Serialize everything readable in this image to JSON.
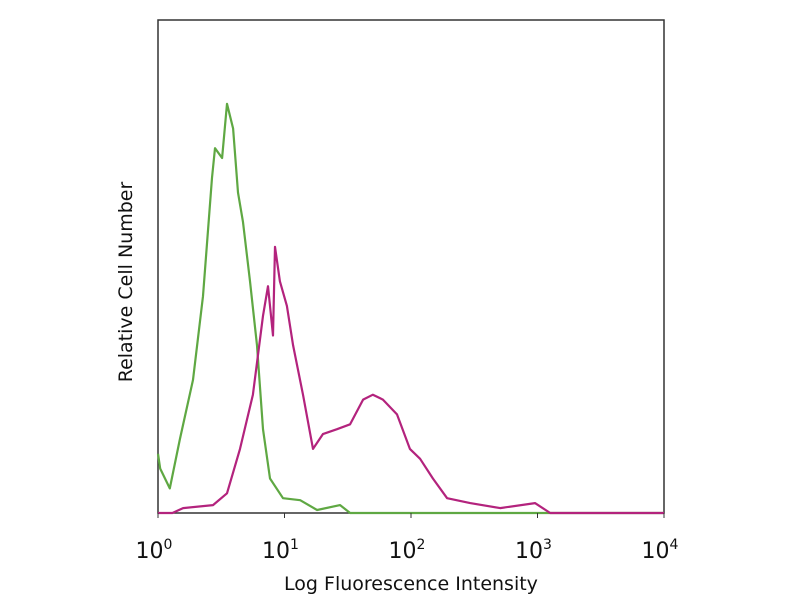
{
  "chart_data": {
    "type": "line",
    "title": "",
    "xlabel": "Log Fluorescence Intensity",
    "ylabel": "Relative Cell Number",
    "xscale": "log",
    "xlim": [
      1,
      10000
    ],
    "ylim": [
      0,
      100
    ],
    "grid": false,
    "legend": "none",
    "xticks": [
      {
        "base": "10",
        "exp": "0",
        "value": 1
      },
      {
        "base": "10",
        "exp": "1",
        "value": 10
      },
      {
        "base": "10",
        "exp": "2",
        "value": 100
      },
      {
        "base": "10",
        "exp": "3",
        "value": 1000
      },
      {
        "base": "10",
        "exp": "4",
        "value": 10000
      }
    ],
    "series": [
      {
        "color": "#5fa843",
        "points": [
          [
            1,
            12
          ],
          [
            1.04,
            9
          ],
          [
            1.24,
            5
          ],
          [
            1.49,
            15
          ],
          [
            1.89,
            27
          ],
          [
            2.27,
            44
          ],
          [
            2.67,
            68
          ],
          [
            2.82,
            74
          ],
          [
            3.21,
            72
          ],
          [
            3.51,
            83
          ],
          [
            3.92,
            78
          ],
          [
            4.29,
            65
          ],
          [
            4.7,
            59
          ],
          [
            5.34,
            47
          ],
          [
            6.06,
            34
          ],
          [
            6.76,
            17
          ],
          [
            7.68,
            7
          ],
          [
            9.73,
            3
          ],
          [
            13.3,
            2.6
          ],
          [
            18.1,
            0.6
          ],
          [
            27.5,
            1.6
          ],
          [
            33,
            0
          ],
          [
            10000,
            0
          ]
        ]
      },
      {
        "color": "#b3237d",
        "points": [
          [
            1,
            0
          ],
          [
            1.3,
            0
          ],
          [
            1.58,
            1
          ],
          [
            2.72,
            1.6
          ],
          [
            3.51,
            4
          ],
          [
            4.45,
            13
          ],
          [
            5.63,
            24
          ],
          [
            6.76,
            40
          ],
          [
            7.41,
            46
          ],
          [
            8.11,
            36
          ],
          [
            8.41,
            54
          ],
          [
            9.2,
            47
          ],
          [
            10.45,
            42
          ],
          [
            11.7,
            34
          ],
          [
            14,
            24
          ],
          [
            16.8,
            13
          ],
          [
            20.1,
            16
          ],
          [
            26,
            17
          ],
          [
            33,
            18
          ],
          [
            41.8,
            23
          ],
          [
            50,
            24
          ],
          [
            60,
            23
          ],
          [
            77.5,
            20
          ],
          [
            98,
            13
          ],
          [
            118,
            11
          ],
          [
            149,
            7
          ],
          [
            193,
            3
          ],
          [
            293,
            2
          ],
          [
            506,
            1
          ],
          [
            955,
            2
          ],
          [
            1260,
            0
          ],
          [
            10000,
            0
          ]
        ]
      }
    ]
  }
}
